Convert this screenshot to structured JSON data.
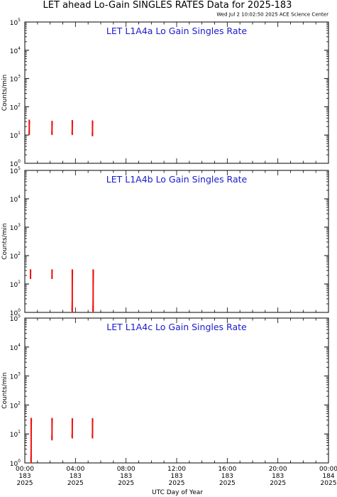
{
  "title": "LET ahead Lo-Gain SINGLES RATES Data for 2025-183",
  "subtitle": "Wed Jul  2 10:02:50 2025 ACE Science Center",
  "xlabel": "UTC Day of Year",
  "colors": {
    "data": "#ee1111",
    "panel_title": "#1a1acc",
    "axes": "#000000",
    "background": "#ffffff"
  },
  "chart_data": [
    {
      "type": "line",
      "title": "LET L1A4a Lo Gain Singles Rate",
      "ylabel": "Counts/min",
      "yscale": "log",
      "ylim": [
        1,
        100000
      ],
      "xlim": [
        0,
        24
      ],
      "x_unit": "hours UTC",
      "segments": [
        {
          "x": 0.35,
          "ymin": 10,
          "ymax": 35
        },
        {
          "x": 2.15,
          "ymin": 10,
          "ymax": 32
        },
        {
          "x": 3.75,
          "ymin": 10,
          "ymax": 34
        },
        {
          "x": 5.35,
          "ymin": 9,
          "ymax": 33
        }
      ]
    },
    {
      "type": "line",
      "title": "LET L1A4b Lo Gain Singles Rate",
      "ylabel": "Counts/min",
      "yscale": "log",
      "ylim": [
        1,
        100000
      ],
      "xlim": [
        0,
        24
      ],
      "x_unit": "hours UTC",
      "segments": [
        {
          "x": 0.45,
          "ymin": 15,
          "ymax": 33
        },
        {
          "x": 2.15,
          "ymin": 15,
          "ymax": 33
        },
        {
          "x": 3.75,
          "ymin": 1,
          "ymax": 33
        },
        {
          "x": 5.4,
          "ymin": 1,
          "ymax": 33
        }
      ]
    },
    {
      "type": "line",
      "title": "LET L1A4c Lo Gain Singles Rate",
      "ylabel": "Counts/min",
      "yscale": "log",
      "ylim": [
        1,
        100000
      ],
      "xlim": [
        0,
        24
      ],
      "x_unit": "hours UTC",
      "segments": [
        {
          "x": 0.5,
          "ymin": 1,
          "ymax": 36
        },
        {
          "x": 2.15,
          "ymin": 6,
          "ymax": 36
        },
        {
          "x": 3.75,
          "ymin": 7,
          "ymax": 35
        },
        {
          "x": 5.35,
          "ymin": 7,
          "ymax": 35
        }
      ]
    }
  ],
  "y_tick_labels": [
    {
      "base": "10",
      "exp": "0"
    },
    {
      "base": "10",
      "exp": "1"
    },
    {
      "base": "10",
      "exp": "2"
    },
    {
      "base": "10",
      "exp": "3"
    },
    {
      "base": "10",
      "exp": "4"
    },
    {
      "base": "10",
      "exp": "5"
    }
  ],
  "x_ticks": [
    {
      "hour": 0,
      "time": "00:00",
      "doy": "183",
      "year": "2025"
    },
    {
      "hour": 4,
      "time": "04:00",
      "doy": "183",
      "year": "2025"
    },
    {
      "hour": 8,
      "time": "08:00",
      "doy": "183",
      "year": "2025"
    },
    {
      "hour": 12,
      "time": "12:00",
      "doy": "183",
      "year": "2025"
    },
    {
      "hour": 16,
      "time": "16:00",
      "doy": "183",
      "year": "2025"
    },
    {
      "hour": 20,
      "time": "20:00",
      "doy": "183",
      "year": "2025"
    },
    {
      "hour": 24,
      "time": "00:00",
      "doy": "184",
      "year": "2025"
    }
  ]
}
